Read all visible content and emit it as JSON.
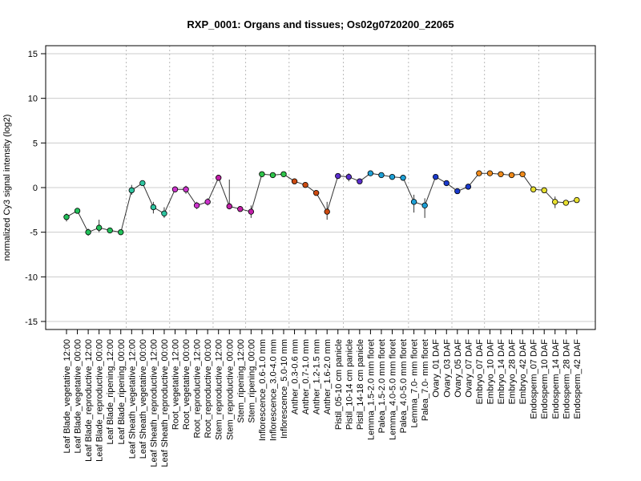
{
  "chart_data": {
    "type": "line",
    "title": "RXP_0001: Organs and tissues; Os02g0720200_22065",
    "xlabel": "",
    "ylabel": "normalized Cy3 signal intensity (log2)",
    "ylim": [
      -15,
      15
    ],
    "yticks": [
      -15,
      -10,
      -5,
      0,
      5,
      10,
      15
    ],
    "grid": "horizontal at y ticks; dotted vertical lines between sample groups",
    "group_boundaries_after_index": [
      5,
      9,
      13,
      16,
      20,
      25,
      31,
      35,
      38,
      43
    ],
    "categories": [
      "Leaf Blade_vegetative_12:00",
      "Leaf Blade_vegetative_00:00",
      "Leaf Blade_reproductive_12:00",
      "Leaf Blade_reproductive_00:00",
      "Leaf Blade_ripening_12:00",
      "Leaf Blade_ripening_00:00",
      "Leaf Sheath_vegetative_12:00",
      "Leaf Sheath_vegetative_00:00",
      "Leaf Sheath_reproductive_12:00",
      "Leaf Sheath_reproductive_00:00",
      "Root_vegetative_12:00",
      "Root_vegetative_00:00",
      "Root_reproductive_12:00",
      "Root_reproductive_00:00",
      "Stem_reproductive_12:00",
      "Stem_reproductive_00:00",
      "Stem_ripening_12:00",
      "Stem_ripening_00:00",
      "Inflorescence_0.6-1.0 mm",
      "Inflorescence_3.0-4.0 mm",
      "Inflorescence_5.0-10 mm",
      "Anther_0.3-0.6 mm",
      "Anther_0.7-1.0 mm",
      "Anther_1.2-1.5 mm",
      "Anther_1.6-2.0 mm",
      "Pistil_05-10 cm panicle",
      "Pistil_10-14 cm panicle",
      "Pistil_14-18 cm panicle",
      "Lemma_1.5-2.0 mm floret",
      "Palea_1.5-2.0 mm floret",
      "Lemma_4.0-5.0 mm floret",
      "Palea_4.0-5.0 mm floret",
      "Lemma_7.0- mm floret",
      "Palea_7.0- mm floret",
      "Ovary_01 DAF",
      "Ovary_03 DAF",
      "Ovary_05 DAF",
      "Ovary_07 DAF",
      "Embryo_07 DAF",
      "Embryo_10 DAF",
      "Embryo_14 DAF",
      "Embryo_28 DAF",
      "Embryo_42 DAF",
      "Endosperm_07 DAF",
      "Endosperm_10 DAF",
      "Endosperm_14 DAF",
      "Endosperm_28 DAF",
      "Endosperm_42 DAF"
    ],
    "values": [
      -3.3,
      -2.6,
      -5.0,
      -4.5,
      -4.8,
      -5.0,
      -0.3,
      0.5,
      -2.2,
      -2.9,
      -0.2,
      -0.2,
      -2.0,
      -1.6,
      1.1,
      -2.1,
      -2.4,
      -2.7,
      1.5,
      1.4,
      1.5,
      0.7,
      0.3,
      -0.6,
      -2.7,
      1.3,
      1.2,
      0.7,
      1.6,
      1.4,
      1.2,
      1.1,
      -1.6,
      -2.0,
      1.2,
      0.5,
      -0.4,
      0.1,
      1.6,
      1.6,
      1.5,
      1.4,
      1.5,
      -0.2,
      -0.3,
      -1.6,
      -1.7,
      -1.4
    ],
    "error_low": [
      -3.8,
      -2.9,
      -5.4,
      -5.0,
      -5.1,
      -5.2,
      -0.8,
      0.3,
      -2.9,
      -3.4,
      -0.5,
      -0.7,
      -2.4,
      -2.0,
      0.9,
      -2.3,
      -2.6,
      -3.4,
      1.3,
      1.2,
      1.3,
      0.5,
      0.1,
      -0.9,
      -3.6,
      1.1,
      0.7,
      0.4,
      1.4,
      1.2,
      1.0,
      0.9,
      -2.8,
      -3.4,
      1.0,
      0.3,
      -0.6,
      -0.1,
      1.4,
      1.4,
      1.3,
      1.2,
      1.3,
      -0.4,
      -0.5,
      -2.3,
      -1.9,
      -1.6
    ],
    "error_high": [
      -2.9,
      -2.3,
      -4.6,
      -3.6,
      -4.5,
      -4.8,
      0.3,
      0.7,
      -1.6,
      -2.2,
      0.1,
      0.2,
      -1.6,
      -1.2,
      1.3,
      0.9,
      -2.2,
      -2.0,
      1.7,
      1.6,
      1.7,
      0.9,
      0.5,
      -0.4,
      -1.6,
      1.5,
      1.6,
      1.0,
      1.8,
      1.6,
      1.4,
      1.3,
      -0.8,
      -1.2,
      1.4,
      0.7,
      -0.2,
      0.4,
      1.8,
      1.8,
      1.7,
      1.6,
      1.7,
      0.0,
      -0.1,
      -1.0,
      -1.5,
      -1.2
    ],
    "colors": [
      "#22c05a",
      "#22c05a",
      "#22c05a",
      "#22c05a",
      "#22c05a",
      "#22c05a",
      "#2ec4a0",
      "#2ec4a0",
      "#2ec4a0",
      "#2ec4a0",
      "#cc33cc",
      "#cc33cc",
      "#cc33cc",
      "#cc33cc",
      "#c21fa8",
      "#c21fa8",
      "#c21fa8",
      "#c21fa8",
      "#2ec44a",
      "#2ec44a",
      "#2ec44a",
      "#cc4a10",
      "#cc4a10",
      "#cc4a10",
      "#cc4a10",
      "#5a2ecc",
      "#5a2ecc",
      "#5a2ecc",
      "#1ea0d6",
      "#1ea0d6",
      "#1ea0d6",
      "#1ea0d6",
      "#1ea0d6",
      "#1ea0d6",
      "#1a3acc",
      "#1a3acc",
      "#1a3acc",
      "#1a3acc",
      "#f08a1a",
      "#f08a1a",
      "#f08a1a",
      "#f08a1a",
      "#f08a1a",
      "#e8e030",
      "#e8e030",
      "#e8e030",
      "#e8e030",
      "#e8e030"
    ]
  }
}
